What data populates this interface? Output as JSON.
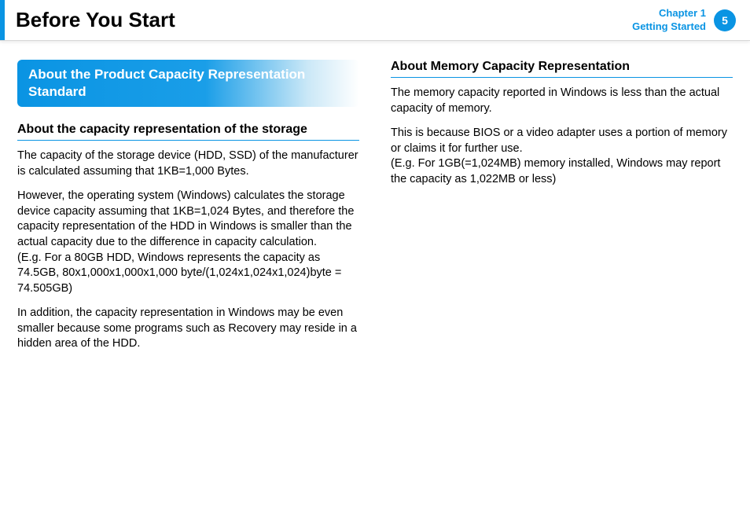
{
  "header": {
    "title": "Before You Start",
    "chapter_line1": "Chapter 1",
    "chapter_line2": "Getting Started",
    "page_number": "5",
    "accent_color": "#0a94e3"
  },
  "left": {
    "callout": "About the Product Capacity Representation Standard",
    "subhead": "About the capacity representation of the storage",
    "p1": "The capacity of the storage device (HDD, SSD) of the manufacturer is calculated assuming that 1KB=1,000 Bytes.",
    "p2": "However, the operating system (Windows) calculates the storage device capacity assuming that 1KB=1,024 Bytes, and therefore the capacity representation of the HDD in Windows is smaller than the actual capacity due to the difference in capacity calculation.\n(E.g. For a 80GB HDD, Windows represents the capacity as 74.5GB, 80x1,000x1,000x1,000 byte/(1,024x1,024x1,024)byte = 74.505GB)",
    "p3": "In addition, the capacity representation in Windows may be even smaller because some programs such as Recovery may reside in a hidden area of the HDD."
  },
  "right": {
    "subhead": "About Memory Capacity Representation",
    "p1": "The memory capacity reported in Windows is less than the actual capacity of memory.",
    "p2": "This is because BIOS or a video adapter uses a portion of memory or claims it for further use.\n(E.g. For 1GB(=1,024MB) memory installed, Windows may report the capacity as 1,022MB or less)"
  }
}
